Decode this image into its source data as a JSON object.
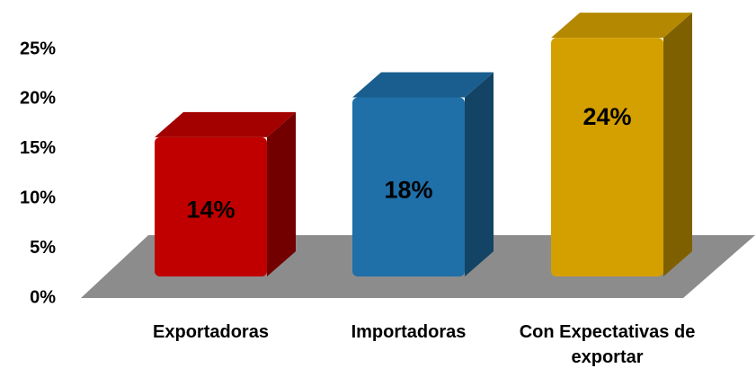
{
  "chart_data": {
    "type": "bar3d",
    "categories": [
      "Exportadoras",
      "Importadoras",
      "Con Expectativas de exportar"
    ],
    "values": [
      14,
      18,
      24
    ],
    "value_labels": [
      "14%",
      "18%",
      "24%"
    ],
    "colors": [
      "#c00000",
      "#1f6fa8",
      "#d4a000"
    ],
    "ylim": [
      0,
      25
    ],
    "yticks": [
      {
        "value": 0,
        "label": "0%"
      },
      {
        "value": 5,
        "label": "5%"
      },
      {
        "value": 10,
        "label": "10%"
      },
      {
        "value": 15,
        "label": "15%"
      },
      {
        "value": 20,
        "label": "20%"
      },
      {
        "value": 25,
        "label": "25%"
      }
    ]
  }
}
